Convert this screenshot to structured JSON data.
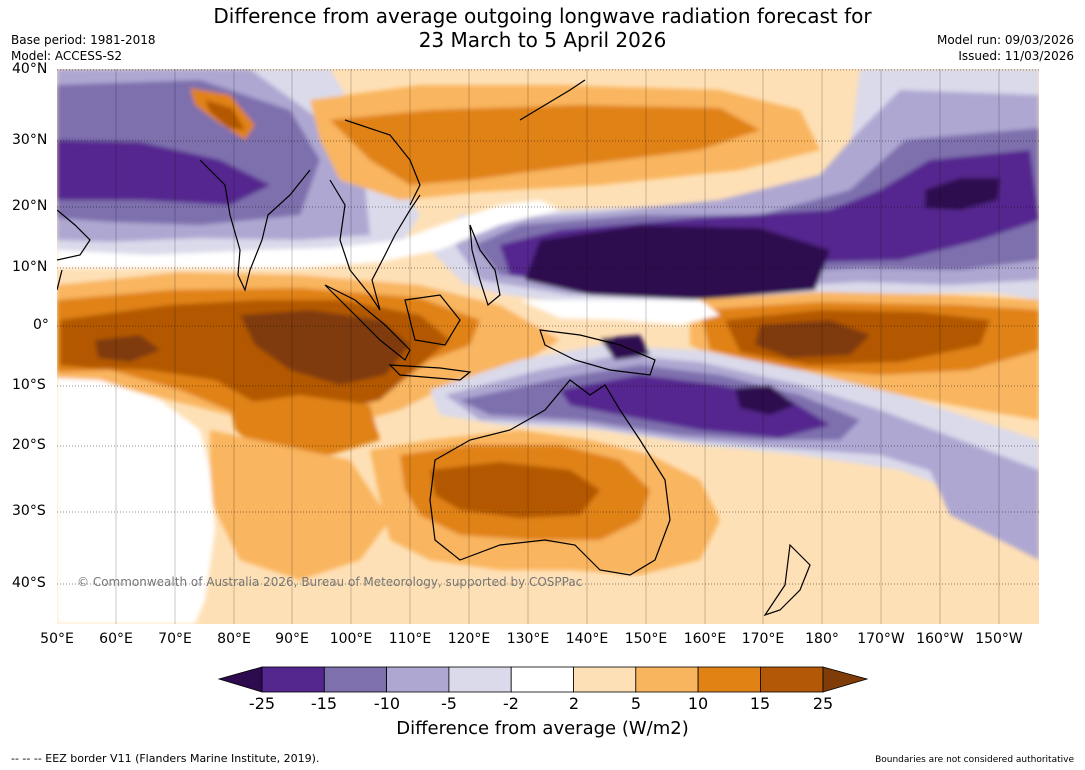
{
  "header": {
    "title_line1": "Difference from average outgoing longwave radiation forecast for",
    "title_line2": "23 March to 5 April 2026",
    "base_period": "Base period: 1981-2018",
    "model": "Model: ACCESS-S2",
    "model_run": "Model run: 09/03/2026",
    "issued": "Issued: 11/03/2026"
  },
  "map": {
    "copyright": "© Commonwealth of Australia 2026, Bureau of Meteorology, supported by COSPPac",
    "lat_labels": [
      "40°N",
      "30°N",
      "20°N",
      "10°N",
      "0°",
      "10°S",
      "20°S",
      "30°S",
      "40°S"
    ],
    "lon_labels": [
      "50°E",
      "60°E",
      "70°E",
      "80°E",
      "90°E",
      "100°E",
      "110°E",
      "120°E",
      "130°E",
      "140°E",
      "150°E",
      "160°E",
      "170°E",
      "180°",
      "170°W",
      "160°W",
      "150°W"
    ]
  },
  "colorbar": {
    "ticks": [
      "-25",
      "-15",
      "-10",
      "-5",
      "-2",
      "2",
      "5",
      "10",
      "15",
      "25"
    ],
    "label": "Difference from average (W/m2)",
    "colors": {
      "c_lt_m25": "#2e0a4f",
      "c_m25_m15": "#54278f",
      "c_m15_m10": "#7e70ad",
      "c_m10_m5": "#aea7d2",
      "c_m5_m2": "#dadaeb",
      "c_m2_2": "#ffffff",
      "c_2_5": "#fee0b6",
      "c_5_10": "#f9b55e",
      "c_10_15": "#e08214",
      "c_15_25": "#b35806",
      "c_gt_25": "#7f3b08"
    }
  },
  "footer": {
    "eez_note": "--  --  -- EEZ border V11 (Flanders Marine Institute, 2019).",
    "disclaimer": "Boundaries are not considered authoritative"
  }
}
